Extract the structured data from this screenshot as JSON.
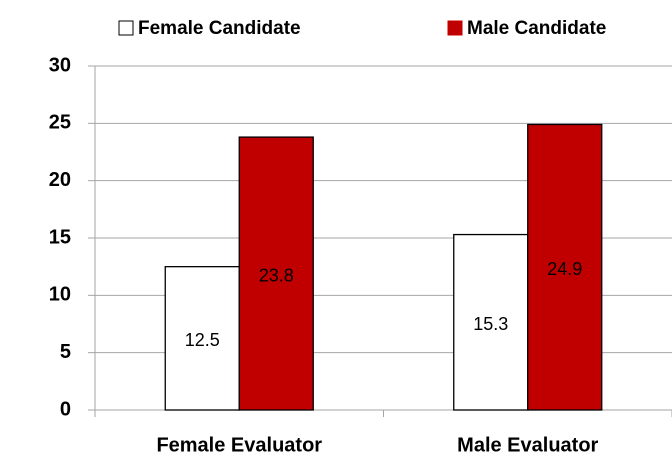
{
  "chart_data": {
    "type": "bar",
    "categories": [
      "Female Evaluator",
      "Male Evaluator"
    ],
    "series": [
      {
        "name": "Female Candidate",
        "color": "#ffffff",
        "values": [
          12.5,
          15.3
        ]
      },
      {
        "name": "Male Candidate",
        "color": "#c00000",
        "values": [
          23.8,
          24.9
        ]
      }
    ],
    "ylim": [
      0,
      30
    ],
    "yticks": [
      0,
      5,
      10,
      15,
      20,
      25,
      30
    ],
    "grid": true,
    "legend": "top"
  }
}
